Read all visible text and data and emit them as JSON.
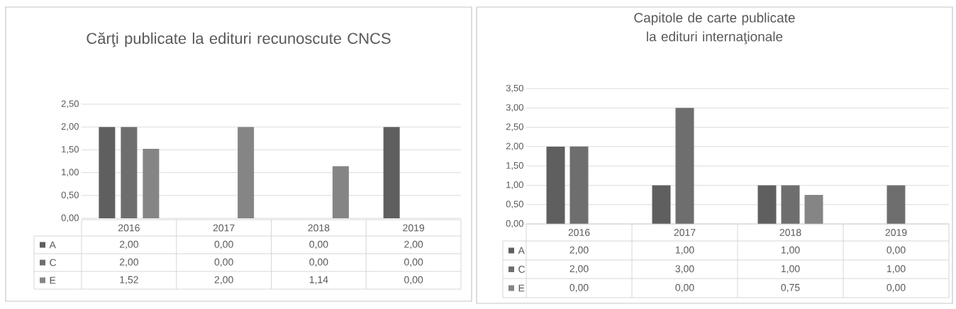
{
  "chart_data": [
    {
      "type": "bar",
      "title": "Cărţi publicate la edituri recunoscute CNCS",
      "categories": [
        "2016",
        "2017",
        "2018",
        "2019"
      ],
      "series": [
        {
          "name": "A",
          "color": "#5f5f5f",
          "values": [
            2.0,
            0.0,
            0.0,
            2.0
          ],
          "value_labels": [
            "2,00",
            "0,00",
            "0,00",
            "2,00"
          ]
        },
        {
          "name": "C",
          "color": "#6e6e6e",
          "values": [
            2.0,
            0.0,
            0.0,
            0.0
          ],
          "value_labels": [
            "2,00",
            "0,00",
            "0,00",
            "0,00"
          ]
        },
        {
          "name": "E",
          "color": "#858585",
          "values": [
            1.52,
            2.0,
            1.14,
            0.0
          ],
          "value_labels": [
            "1,52",
            "2,00",
            "1,14",
            "0,00"
          ]
        }
      ],
      "ylim": [
        0,
        2.5
      ],
      "yticks": [
        {
          "value": 0,
          "label": "0,00"
        },
        {
          "value": 0.5,
          "label": "0,50"
        },
        {
          "value": 1,
          "label": "1,00"
        },
        {
          "value": 1.5,
          "label": "1,50"
        },
        {
          "value": 2,
          "label": "2,00"
        },
        {
          "value": 2.5,
          "label": "2,50"
        }
      ],
      "grid": "y",
      "legend": "bottom"
    },
    {
      "type": "bar",
      "title": "Capitole de carte publicate la edituri internaţionale",
      "categories": [
        "2016",
        "2017",
        "2018",
        "2019"
      ],
      "series": [
        {
          "name": "A",
          "color": "#5f5f5f",
          "values": [
            2.0,
            1.0,
            1.0,
            0.0
          ],
          "value_labels": [
            "2,00",
            "1,00",
            "1,00",
            "0,00"
          ]
        },
        {
          "name": "C",
          "color": "#6e6e6e",
          "values": [
            2.0,
            3.0,
            1.0,
            1.0
          ],
          "value_labels": [
            "2,00",
            "3,00",
            "1,00",
            "1,00"
          ]
        },
        {
          "name": "E",
          "color": "#858585",
          "values": [
            0.0,
            0.0,
            0.75,
            0.0
          ],
          "value_labels": [
            "0,00",
            "0,00",
            "0,75",
            "0,00"
          ]
        }
      ],
      "ylim": [
        0,
        3.5
      ],
      "yticks": [
        {
          "value": 0,
          "label": "0,00"
        },
        {
          "value": 0.5,
          "label": "0,50"
        },
        {
          "value": 1,
          "label": "1,00"
        },
        {
          "value": 1.5,
          "label": "1,50"
        },
        {
          "value": 2,
          "label": "2,00"
        },
        {
          "value": 2.5,
          "label": "2,50"
        },
        {
          "value": 3,
          "label": "3,00"
        },
        {
          "value": 3.5,
          "label": "3,50"
        }
      ],
      "grid": "y",
      "legend": "bottom"
    }
  ]
}
